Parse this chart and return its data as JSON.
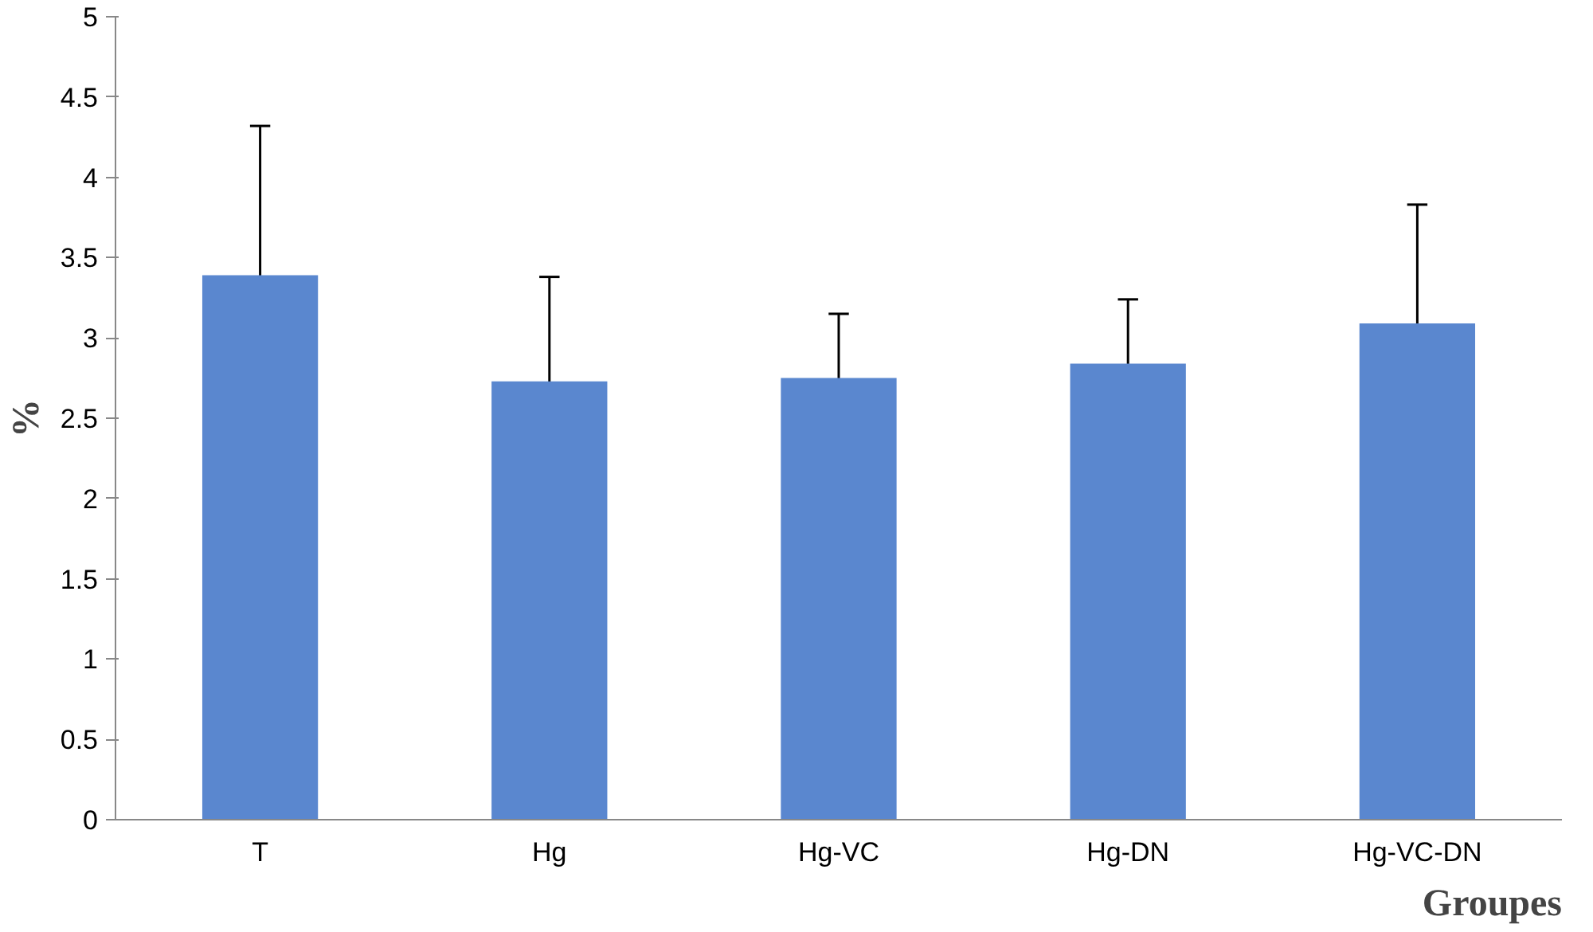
{
  "chart_data": {
    "type": "bar",
    "categories": [
      "T",
      "Hg",
      "Hg-VC",
      "Hg-DN",
      "Hg-VC-DN"
    ],
    "values": [
      3.39,
      2.73,
      2.75,
      2.84,
      3.09
    ],
    "errors": [
      0.93,
      0.65,
      0.4,
      0.4,
      0.74
    ],
    "color": "#5a87cf",
    "ylabel": "%",
    "xlabel": "Groupes",
    "ylim": [
      0,
      5
    ],
    "yticks": [
      0,
      0.5,
      1,
      1.5,
      2,
      2.5,
      3,
      3.5,
      4,
      4.5,
      5
    ],
    "grid": false
  }
}
